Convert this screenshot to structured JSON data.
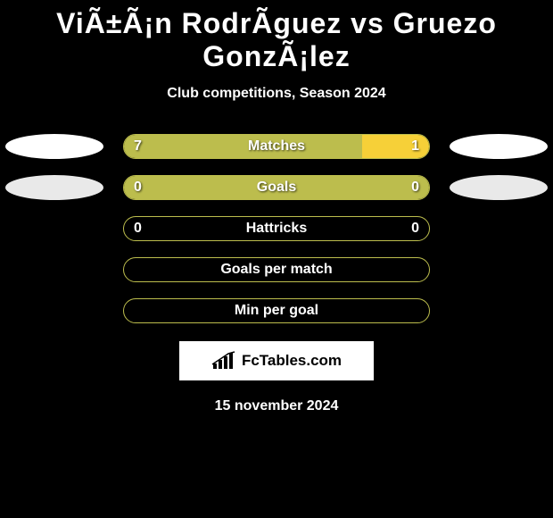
{
  "title": "ViÃ±Ã¡n RodrÃ­guez vs Gruezo GonzÃ¡lez",
  "subtitle": "Club competitions, Season 2024",
  "date": "15 november 2024",
  "logo_text": "FcTables.com",
  "background_color": "#000000",
  "rows": [
    {
      "label": "Matches",
      "left_value": "7",
      "right_value": "1",
      "left_pct": 78,
      "right_pct": 22,
      "left_color": "#bcbd4d",
      "right_color": "#f6d038",
      "border_color": "#bcbd4d",
      "show_values": true,
      "show_left_club": true,
      "show_right_club": true,
      "left_club_fill": "#ffffff",
      "right_club_fill": "#ffffff"
    },
    {
      "label": "Goals",
      "left_value": "0",
      "right_value": "0",
      "left_pct": 100,
      "right_pct": 0,
      "left_color": "#bcbd4d",
      "right_color": "#f6d038",
      "border_color": "#bcbd4d",
      "show_values": true,
      "show_left_club": true,
      "show_right_club": true,
      "left_club_fill": "#e9e9e9",
      "right_club_fill": "#e9e9e9"
    },
    {
      "label": "Hattricks",
      "left_value": "0",
      "right_value": "0",
      "left_pct": 0,
      "right_pct": 0,
      "left_color": "#bcbd4d",
      "right_color": "#f6d038",
      "border_color": "#bcbd4d",
      "show_values": true,
      "show_left_club": false,
      "show_right_club": false,
      "left_club_fill": "#e9e9e9",
      "right_club_fill": "#e9e9e9"
    },
    {
      "label": "Goals per match",
      "left_value": "",
      "right_value": "",
      "left_pct": 0,
      "right_pct": 0,
      "left_color": "#bcbd4d",
      "right_color": "#f6d038",
      "border_color": "#bcbd4d",
      "show_values": false,
      "show_left_club": false,
      "show_right_club": false,
      "left_club_fill": "#e9e9e9",
      "right_club_fill": "#e9e9e9"
    },
    {
      "label": "Min per goal",
      "left_value": "",
      "right_value": "",
      "left_pct": 0,
      "right_pct": 0,
      "left_color": "#bcbd4d",
      "right_color": "#f6d038",
      "border_color": "#bcbd4d",
      "show_values": false,
      "show_left_club": false,
      "show_right_club": false,
      "left_club_fill": "#e9e9e9",
      "right_club_fill": "#e9e9e9"
    }
  ]
}
